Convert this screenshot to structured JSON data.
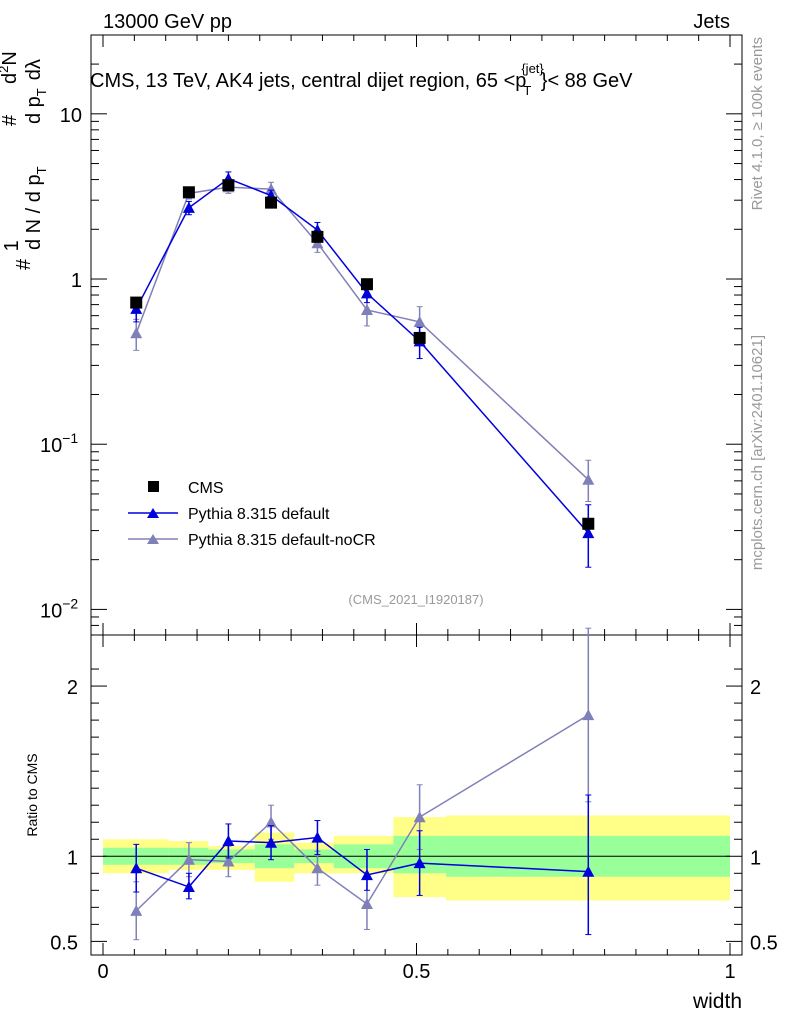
{
  "header": {
    "left": "13000 GeV pp",
    "right": "Jets"
  },
  "side_labels": {
    "top": "Rivet 4.1.0, ≥ 100k events",
    "bottom": "mcplots.cern.ch [arXiv:2401.10621]"
  },
  "chart_data": {
    "type": "line",
    "title": "CMS, 13 TeV, AK4 jets, central dijet region, 65 <p",
    "title_sub": "T",
    "title_sup": "{jet}",
    "title_tail": "}< 88 GeV",
    "analysis_id": "(CMS_2021_I1920187)",
    "xlabel": "width",
    "ylabel_ratio": "Ratio to CMS",
    "xlim": [
      0,
      1
    ],
    "main": {
      "yscale": "log",
      "ylim": [
        0.007,
        30
      ],
      "yticks": [
        {
          "value": 10,
          "label": "10"
        },
        {
          "value": 1,
          "label": "1"
        },
        {
          "value": 0.1,
          "label": "10",
          "exp": "−1"
        },
        {
          "value": 0.01,
          "label": "10",
          "exp": "−2"
        }
      ],
      "ylabel_parts": [
        "#",
        "1",
        "d N / d p",
        "T",
        "#",
        "d p",
        "T",
        "dλ",
        "d",
        "2",
        "N"
      ]
    },
    "ratio": {
      "ylim": [
        0.42,
        2.3
      ],
      "yticks": [
        {
          "value": 0.5,
          "label": "0.5"
        },
        {
          "value": 1,
          "label": "1"
        },
        {
          "value": 2,
          "label": "2"
        }
      ],
      "bands": [
        {
          "xlo": 0.0,
          "xhi": 0.105,
          "green": [
            0.95,
            1.05
          ],
          "yellow": [
            0.9,
            1.1
          ]
        },
        {
          "xlo": 0.105,
          "xhi": 0.168,
          "green": [
            0.95,
            1.05
          ],
          "yellow": [
            0.92,
            1.09
          ]
        },
        {
          "xlo": 0.168,
          "xhi": 0.242,
          "green": [
            0.96,
            1.04
          ],
          "yellow": [
            0.92,
            1.06
          ]
        },
        {
          "xlo": 0.242,
          "xhi": 0.305,
          "green": [
            0.93,
            1.07
          ],
          "yellow": [
            0.85,
            1.14
          ]
        },
        {
          "xlo": 0.305,
          "xhi": 0.368,
          "green": [
            0.96,
            1.04
          ],
          "yellow": [
            0.9,
            1.08
          ]
        },
        {
          "xlo": 0.368,
          "xhi": 0.463,
          "green": [
            0.93,
            1.07
          ],
          "yellow": [
            0.9,
            1.12
          ]
        },
        {
          "xlo": 0.463,
          "xhi": 0.547,
          "green": [
            0.9,
            1.12
          ],
          "yellow": [
            0.76,
            1.23
          ]
        },
        {
          "xlo": 0.547,
          "xhi": 1.0,
          "green": [
            0.88,
            1.12
          ],
          "yellow": [
            0.74,
            1.24
          ]
        }
      ]
    },
    "series": [
      {
        "name": "CMS",
        "marker": "square",
        "color": "#000000",
        "x": [
          0.053,
          0.137,
          0.2,
          0.268,
          0.342,
          0.421,
          0.505,
          0.774
        ],
        "y": [
          0.72,
          3.35,
          3.7,
          2.9,
          1.8,
          0.93,
          0.44,
          0.033
        ],
        "ylo": [
          0.72,
          3.35,
          3.7,
          2.9,
          1.8,
          0.93,
          0.44,
          0.033
        ],
        "yhi": [
          0.72,
          3.35,
          3.7,
          2.9,
          1.8,
          0.93,
          0.44,
          0.033
        ],
        "ratio": [
          1,
          1,
          1,
          1,
          1,
          1,
          1,
          1
        ],
        "rlo": [
          1,
          1,
          1,
          1,
          1,
          1,
          1,
          1
        ],
        "rhi": [
          1,
          1,
          1,
          1,
          1,
          1,
          1,
          1
        ]
      },
      {
        "name": "Pythia 8.315 default",
        "marker": "triangle",
        "color": "#0000dd",
        "x": [
          0.053,
          0.137,
          0.2,
          0.268,
          0.342,
          0.421,
          0.505,
          0.774
        ],
        "y": [
          0.66,
          2.7,
          4.05,
          3.2,
          1.98,
          0.82,
          0.42,
          0.029
        ],
        "ylo": [
          0.55,
          2.45,
          3.65,
          2.95,
          1.78,
          0.72,
          0.33,
          0.018
        ],
        "yhi": [
          0.76,
          2.95,
          4.45,
          3.45,
          2.2,
          0.92,
          0.51,
          0.043
        ],
        "ratio": [
          0.93,
          0.82,
          1.09,
          1.08,
          1.11,
          0.89,
          0.96,
          0.91
        ],
        "rlo": [
          0.79,
          0.75,
          0.99,
          0.98,
          1.01,
          0.8,
          0.77,
          0.54
        ],
        "rhi": [
          1.07,
          0.9,
          1.19,
          1.18,
          1.21,
          1.04,
          1.15,
          1.36
        ]
      },
      {
        "name": "Pythia 8.315 default-noCR",
        "marker": "triangle",
        "color": "#8080b8",
        "x": [
          0.053,
          0.137,
          0.2,
          0.268,
          0.342,
          0.421,
          0.505,
          0.774
        ],
        "y": [
          0.47,
          3.3,
          3.6,
          3.5,
          1.65,
          0.65,
          0.55,
          0.061
        ],
        "ylo": [
          0.37,
          3.05,
          3.3,
          3.2,
          1.45,
          0.52,
          0.43,
          0.045
        ],
        "yhi": [
          0.57,
          3.55,
          3.9,
          3.85,
          1.85,
          0.78,
          0.68,
          0.08
        ],
        "ratio": [
          0.68,
          0.98,
          0.97,
          1.2,
          0.93,
          0.72,
          1.23,
          1.83
        ],
        "rlo": [
          0.51,
          0.88,
          0.88,
          1.1,
          0.83,
          0.57,
          1.04,
          1.32
        ],
        "rhi": [
          0.85,
          1.08,
          1.06,
          1.3,
          1.03,
          0.87,
          1.42,
          2.34
        ]
      }
    ]
  }
}
